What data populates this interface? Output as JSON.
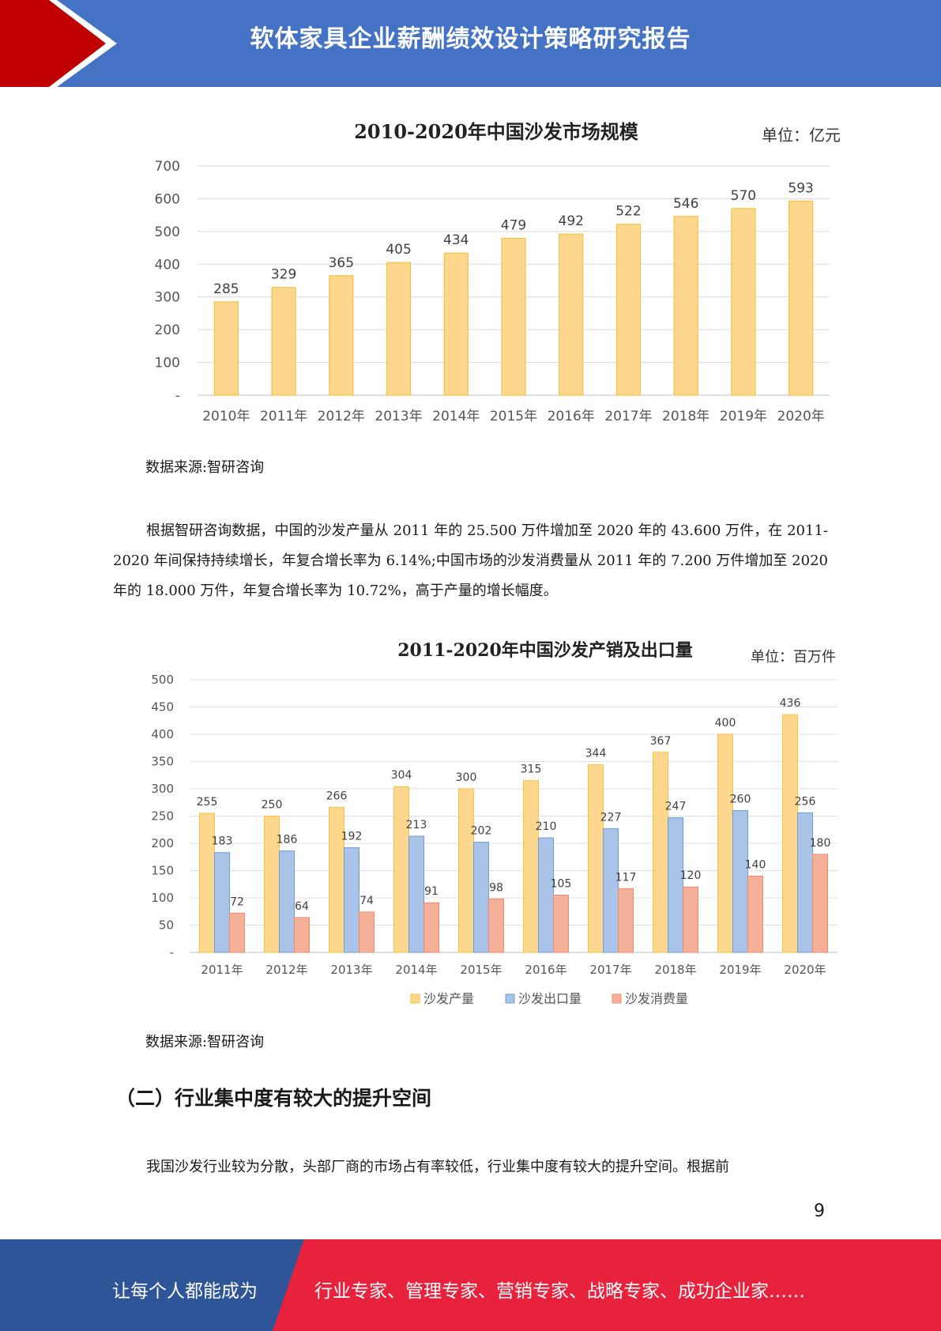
{
  "header": {
    "title": "软体家具企业薪酬绩效设计策略研究报告"
  },
  "charts": [
    {
      "unit_label": "单位：亿元",
      "source": "数据来源:智研咨询"
    },
    {
      "unit_label": "单位：百万件",
      "source": "数据来源:智研咨询"
    }
  ],
  "chart_data": [
    {
      "type": "bar",
      "title": "2010-2020年中国沙发市场规模",
      "categories": [
        "2010年",
        "2011年",
        "2012年",
        "2013年",
        "2014年",
        "2015年",
        "2016年",
        "2017年",
        "2018年",
        "2019年",
        "2020年"
      ],
      "values": [
        285,
        329,
        365,
        405,
        434,
        479,
        492,
        522,
        546,
        570,
        593
      ],
      "ylim": [
        0,
        700
      ],
      "yticks": [
        "-",
        "100",
        "200",
        "300",
        "400",
        "500",
        "600",
        "700"
      ],
      "grid": true,
      "colors": {
        "fill": "#fdd78e",
        "stroke": "#f5c242"
      }
    },
    {
      "type": "bar",
      "title": "2011-2020年中国沙发产销及出口量",
      "categories": [
        "2011年",
        "2012年",
        "2013年",
        "2014年",
        "2015年",
        "2016年",
        "2017年",
        "2018年",
        "2019年",
        "2020年"
      ],
      "series": [
        {
          "name": "沙发产量",
          "values": [
            255,
            250,
            266,
            304,
            300,
            315,
            344,
            367,
            400,
            436
          ],
          "color": "#fdd78e",
          "stroke": "#f5c242"
        },
        {
          "name": "沙发出口量",
          "values": [
            183,
            186,
            192,
            213,
            202,
            210,
            227,
            247,
            260,
            256
          ],
          "color": "#a9c4e8",
          "stroke": "#6f9bd3"
        },
        {
          "name": "沙发消费量",
          "values": [
            72,
            64,
            74,
            91,
            98,
            105,
            117,
            120,
            140,
            180
          ],
          "color": "#f4b099",
          "stroke": "#ee8c6a"
        }
      ],
      "ylim": [
        0,
        500
      ],
      "yticks": [
        "-",
        "50",
        "100",
        "150",
        "200",
        "250",
        "300",
        "350",
        "400",
        "450",
        "500"
      ],
      "grid": true,
      "legend": "bottom"
    }
  ],
  "body": {
    "para1": "根据智研咨询数据，中国的沙发产量从 2011 年的 25.500 万件增加至 2020 年的 43.600 万件，在 2011-2020 年间保持持续增长，年复合增长率为 6.14%;中国市场的沙发消费量从 2011 年的 7.200 万件增加至 2020 年的 18.000 万件，年复合增长率为 10.72%，高于产量的增长幅度。",
    "section_heading": "（二）行业集中度有较大的提升空间",
    "para2": "我国沙发行业较为分散，头部厂商的市场占有率较低，行业集中度有较大的提升空间。根据前"
  },
  "page_number": "9",
  "footer": {
    "left_text": "让每个人都能成为",
    "right_text": "行业专家、管理专家、营销专家、战略专家、成功企业家……",
    "colors": {
      "blue": "#2e5597",
      "red": "#e8223c"
    }
  },
  "colors": {
    "header_blue": "#4472c4",
    "header_red": "#c00000"
  }
}
